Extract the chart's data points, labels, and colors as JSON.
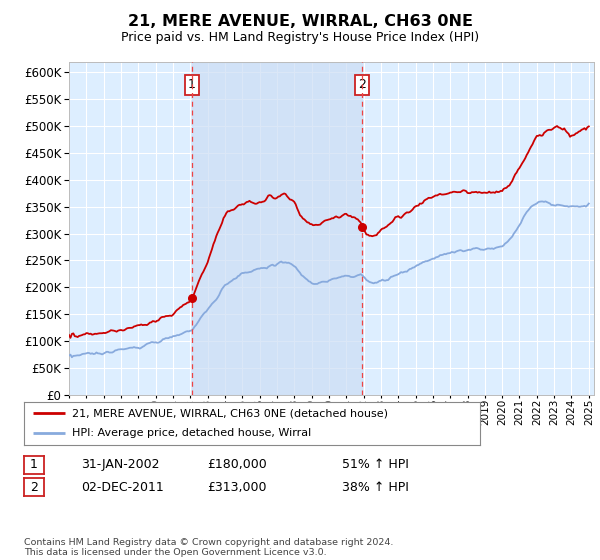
{
  "title": "21, MERE AVENUE, WIRRAL, CH63 0NE",
  "subtitle": "Price paid vs. HM Land Registry's House Price Index (HPI)",
  "hpi_label": "21, MERE AVENUE, WIRRAL, CH63 0NE (detached house)",
  "avg_label": "HPI: Average price, detached house, Wirral",
  "transaction1_date": "31-JAN-2002",
  "transaction1_price": 180000,
  "transaction1_pct": "51% ↑ HPI",
  "transaction2_date": "02-DEC-2011",
  "transaction2_price": 313000,
  "transaction2_pct": "38% ↑ HPI",
  "footnote": "Contains HM Land Registry data © Crown copyright and database right 2024.\nThis data is licensed under the Open Government Licence v3.0.",
  "line_color_red": "#cc0000",
  "line_color_blue": "#88aadd",
  "bg_color": "#ddeeff",
  "shade_color": "#ccddf5",
  "ylim_min": 0,
  "ylim_max": 620000,
  "sale1_year": 2002.083,
  "sale2_year": 2011.917,
  "sale1_price": 180000,
  "sale2_price": 313000
}
